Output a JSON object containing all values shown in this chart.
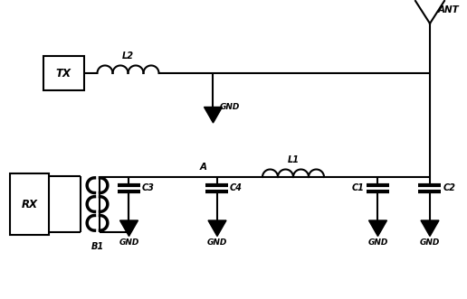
{
  "bg_color": "#ffffff",
  "lw": 1.5,
  "lw_thick": 2.5,
  "lw_cap": 3.0,
  "fig_w": 5.16,
  "fig_h": 3.31,
  "dpi": 100,
  "xlim": [
    0,
    10.32
  ],
  "ylim": [
    0,
    6.62
  ]
}
